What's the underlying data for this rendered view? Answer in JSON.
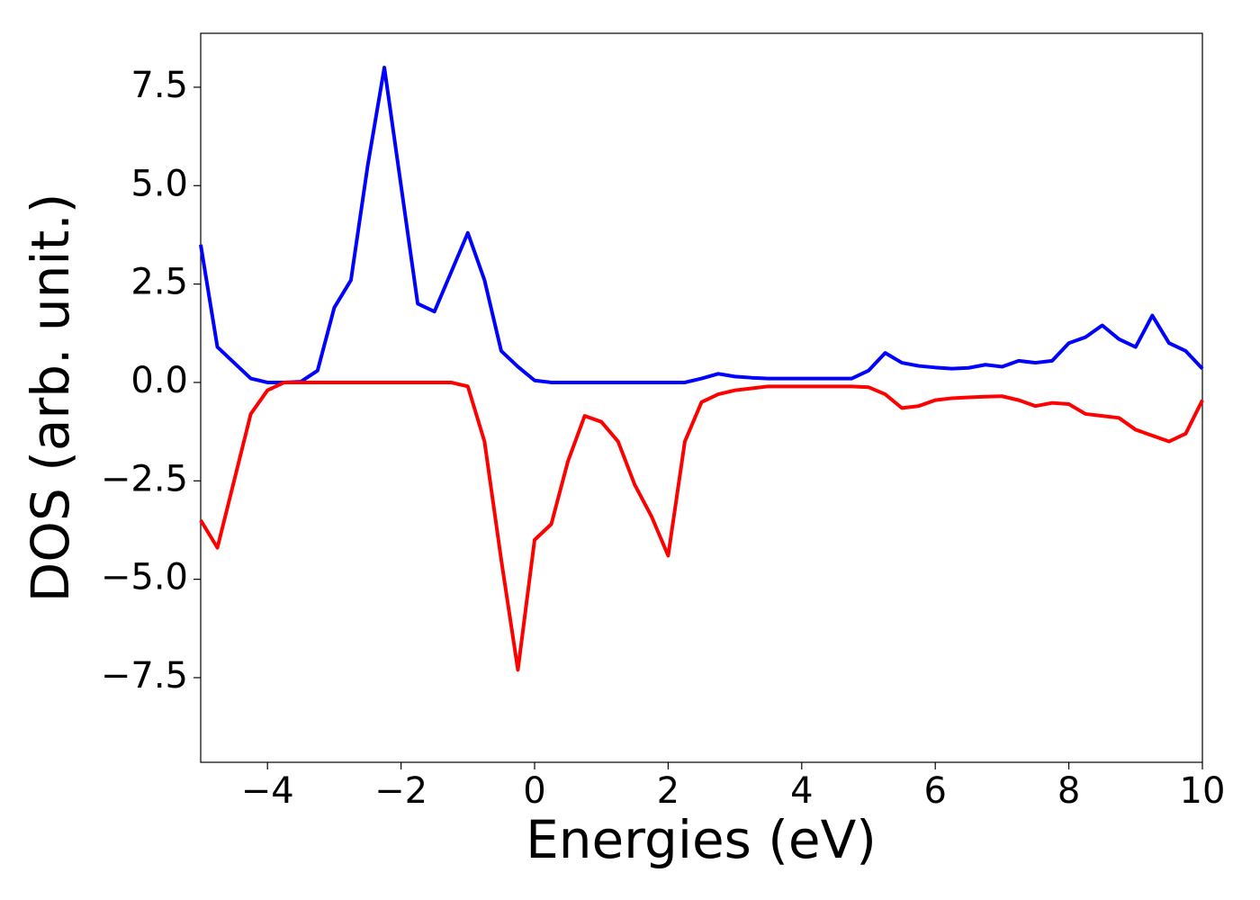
{
  "chart_data": {
    "type": "line",
    "xlabel": "Energies (eV)",
    "ylabel": "DOS (arb. unit.)",
    "x": [
      -5,
      -4.75,
      -4.5,
      -4.25,
      -4,
      -3.75,
      -3.5,
      -3.25,
      -3,
      -2.75,
      -2.5,
      -2.25,
      -2,
      -1.75,
      -1.5,
      -1.25,
      -1,
      -0.75,
      -0.5,
      -0.25,
      0,
      0.25,
      0.5,
      0.75,
      1,
      1.25,
      1.5,
      1.75,
      2,
      2.25,
      2.5,
      2.75,
      3,
      3.25,
      3.5,
      3.75,
      4,
      4.25,
      4.5,
      4.75,
      5,
      5.25,
      5.5,
      5.75,
      6,
      6.25,
      6.5,
      6.75,
      7,
      7.25,
      7.5,
      7.75,
      8,
      8.25,
      8.5,
      8.75,
      9,
      9.25,
      9.5,
      9.75,
      10
    ],
    "series": [
      {
        "color": "#0000ff",
        "values": [
          3.5,
          0.9,
          0.5,
          0.1,
          0,
          0,
          0.02,
          0.3,
          1.9,
          2.6,
          5.5,
          8.0,
          5.0,
          2.0,
          1.8,
          2.8,
          3.8,
          2.6,
          0.8,
          0.4,
          0.05,
          0,
          0,
          0,
          0,
          0,
          0,
          0,
          0,
          0,
          0.1,
          0.22,
          0.15,
          0.12,
          0.1,
          0.1,
          0.1,
          0.1,
          0.1,
          0.1,
          0.3,
          0.75,
          0.5,
          0.42,
          0.38,
          0.35,
          0.37,
          0.45,
          0.4,
          0.55,
          0.5,
          0.55,
          1.0,
          1.15,
          1.45,
          1.1,
          0.9,
          1.7,
          1.0,
          0.8,
          0.35
        ]
      },
      {
        "color": "#ff0000",
        "values": [
          -3.5,
          -4.2,
          -2.5,
          -0.8,
          -0.2,
          0,
          0,
          0,
          0,
          0,
          0,
          0,
          0,
          0,
          0,
          0,
          -0.1,
          -1.5,
          -4.5,
          -7.3,
          -4.0,
          -3.6,
          -2.0,
          -0.85,
          -1.0,
          -1.5,
          -2.6,
          -3.4,
          -4.4,
          -1.5,
          -0.5,
          -0.3,
          -0.2,
          -0.15,
          -0.1,
          -0.1,
          -0.1,
          -0.1,
          -0.1,
          -0.1,
          -0.12,
          -0.3,
          -0.65,
          -0.6,
          -0.45,
          -0.4,
          -0.38,
          -0.36,
          -0.35,
          -0.45,
          -0.6,
          -0.52,
          -0.55,
          -0.8,
          -0.85,
          -0.9,
          -1.2,
          -1.35,
          -1.5,
          -1.3,
          -0.45
        ]
      }
    ],
    "xlim": [
      -5,
      10
    ],
    "xticks": [
      {
        "value": -4,
        "label": "−4"
      },
      {
        "value": -2,
        "label": "−2"
      },
      0,
      2,
      4,
      6,
      8,
      10
    ],
    "ylim": [
      -9.65,
      8.87
    ],
    "yticks": [
      {
        "value": -7.5,
        "label": "−7.5"
      },
      {
        "value": -5,
        "label": "−5.0"
      },
      {
        "value": -2.5,
        "label": "−2.5"
      },
      {
        "value": 0,
        "label": "0.0"
      },
      {
        "value": 2.5,
        "label": "2.5"
      },
      {
        "value": 5,
        "label": "5.0"
      },
      7.5
    ],
    "grid": false
  }
}
